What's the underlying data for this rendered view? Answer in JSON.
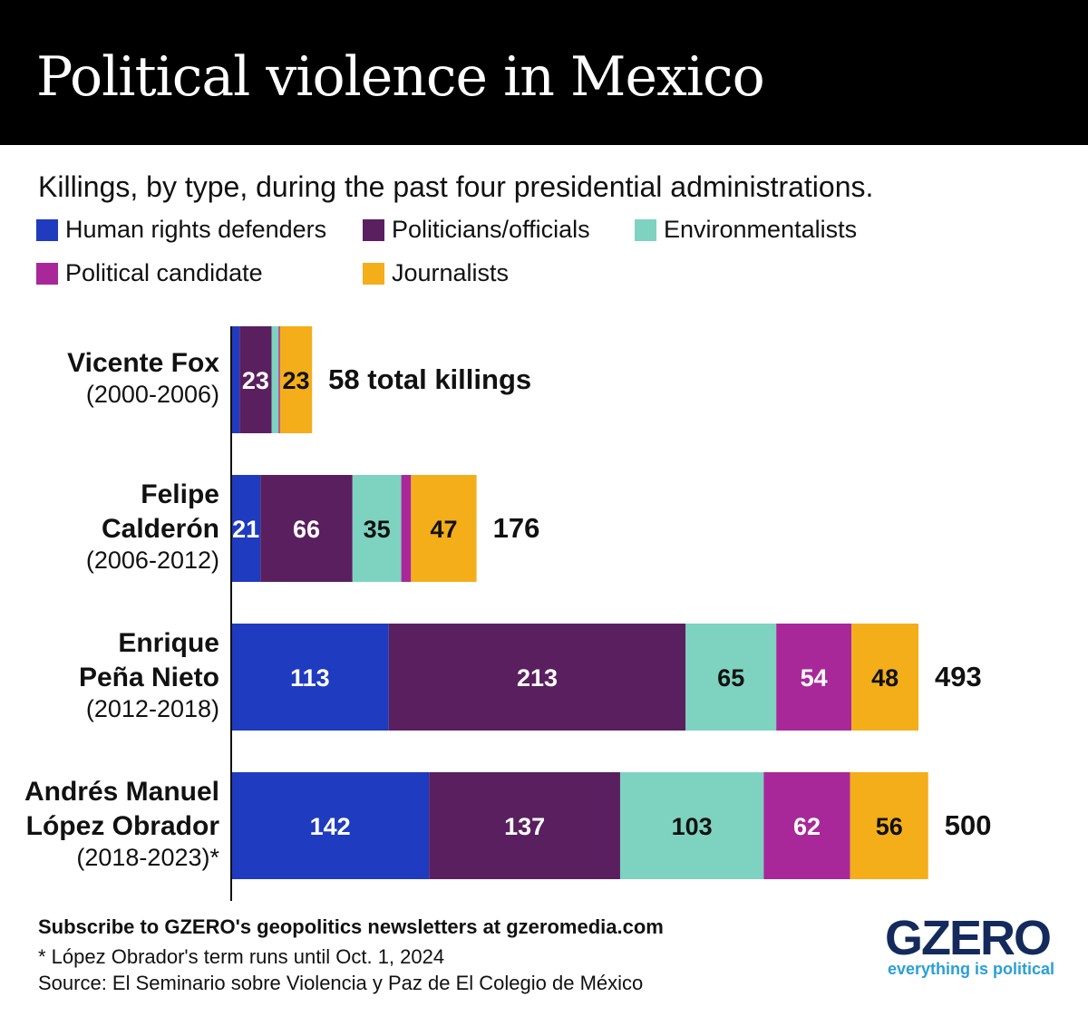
{
  "title": "Political violence in Mexico",
  "chart_data": {
    "type": "bar",
    "orientation": "horizontal-stacked",
    "subtitle": "Killings, by type, during the past four presidential administrations.",
    "categories": [
      {
        "name_lines": [
          "Vicente Fox"
        ],
        "years": "(2000-2006)"
      },
      {
        "name_lines": [
          "Felipe",
          "Calderón"
        ],
        "years": "(2006-2012)"
      },
      {
        "name_lines": [
          "Enrique",
          "Peña Nieto"
        ],
        "years": "(2012-2018)"
      },
      {
        "name_lines": [
          "Andrés Manuel",
          "López Obrador"
        ],
        "years": "(2018-2023)*"
      }
    ],
    "series": [
      {
        "name": "Human rights defenders",
        "color": "#1f3bbf",
        "text": "#fff",
        "values": [
          6,
          21,
          113,
          142
        ]
      },
      {
        "name": "Politicians/officials",
        "color": "#5a1f5f",
        "text": "#fff",
        "values": [
          23,
          66,
          213,
          137
        ]
      },
      {
        "name": "Environmentalists",
        "color": "#7dd3c0",
        "text": "#111",
        "values": [
          5,
          35,
          65,
          103
        ]
      },
      {
        "name": "Political candidate",
        "color": "#a8289a",
        "text": "#fff",
        "values": [
          1,
          7,
          54,
          62
        ]
      },
      {
        "name": "Journalists",
        "color": "#f4ae1a",
        "text": "#111",
        "values": [
          23,
          47,
          48,
          56
        ]
      }
    ],
    "totals": [
      58,
      176,
      493,
      500
    ],
    "total_labels": [
      "58 total killings",
      "176",
      "493",
      "500"
    ],
    "legend_placement": "top"
  },
  "footer": {
    "subscribe": "Subscribe to GZERO's geopolitics newsletters at gzeromedia.com",
    "note": "* López Obrador's term runs until Oct. 1, 2024",
    "source": "Source: El Seminario sobre Violencia y Paz de El Colegio de México"
  },
  "logo": {
    "name": "GZERO",
    "tagline": "everything is political"
  }
}
